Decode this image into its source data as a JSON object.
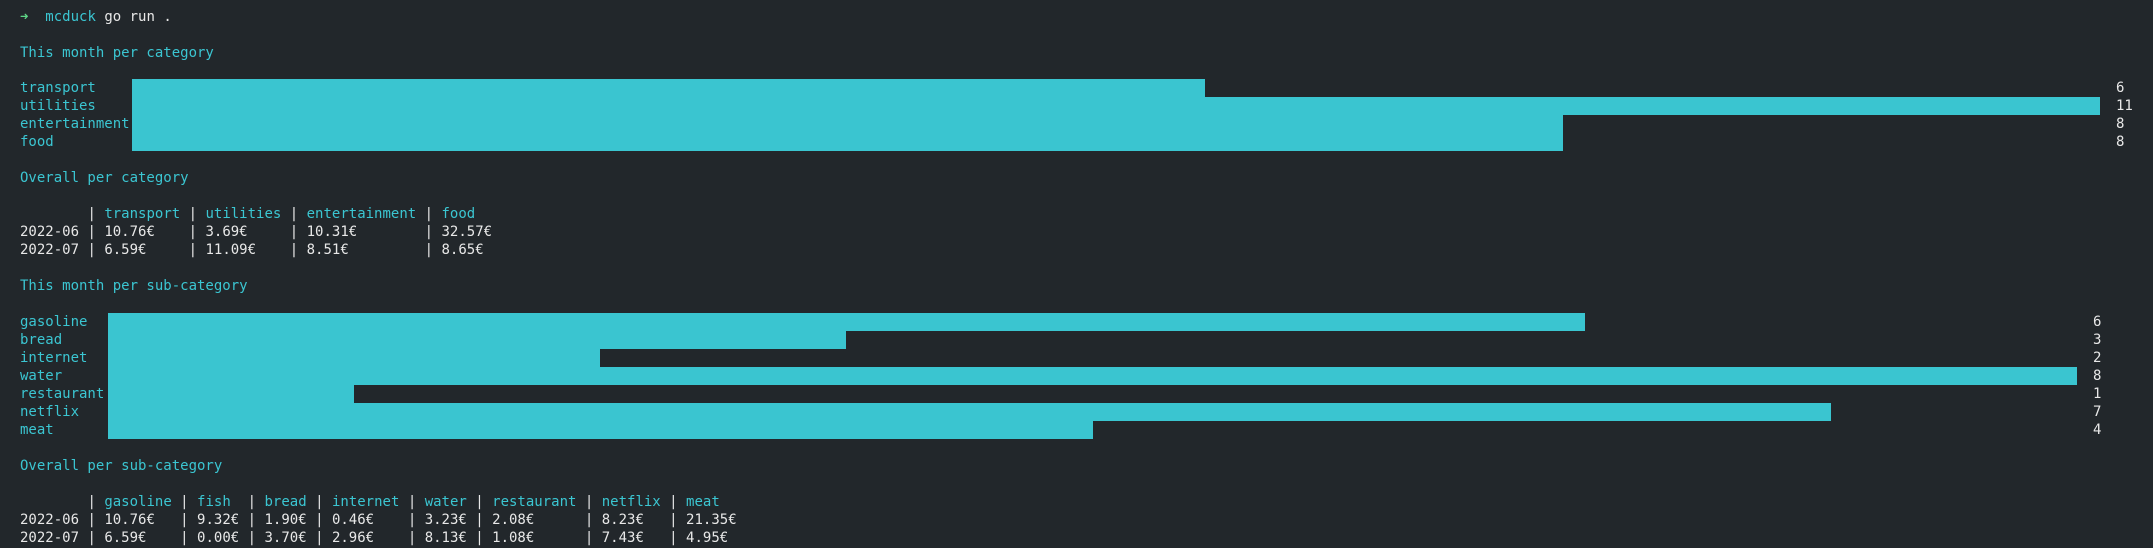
{
  "prompt": {
    "arrow": "➜",
    "directory": "mcduck",
    "command": "go run ."
  },
  "colors": {
    "background": "#22272b",
    "accent": "#3bc6d2",
    "bar": "#3ac5d0",
    "prompt_arrow": "#5fd787"
  },
  "sections": {
    "month_category": {
      "title": "This month per category",
      "scale_max": 11,
      "rows": [
        {
          "label": "transport",
          "value": 6
        },
        {
          "label": "utilities",
          "value": 11
        },
        {
          "label": "entertainment",
          "value": 8
        },
        {
          "label": "food",
          "value": 8
        }
      ]
    },
    "overall_category": {
      "title": "Overall per category",
      "headers": [
        "",
        "transport",
        "utilities",
        "entertainment",
        "food"
      ],
      "rows": [
        [
          "2022-06",
          "10.76€",
          "3.69€",
          "10.31€",
          "32.57€"
        ],
        [
          "2022-07",
          "6.59€",
          "11.09€",
          "8.51€",
          "8.65€"
        ]
      ]
    },
    "month_subcategory": {
      "title": "This month per sub-category",
      "scale_max": 8,
      "rows": [
        {
          "label": "gasoline",
          "value": 6
        },
        {
          "label": "bread",
          "value": 3
        },
        {
          "label": "internet",
          "value": 2
        },
        {
          "label": "water",
          "value": 8
        },
        {
          "label": "restaurant",
          "value": 1
        },
        {
          "label": "netflix",
          "value": 7
        },
        {
          "label": "meat",
          "value": 4
        }
      ]
    },
    "overall_subcategory": {
      "title": "Overall per sub-category",
      "headers": [
        "",
        "gasoline",
        "fish",
        "bread",
        "internet",
        "water",
        "restaurant",
        "netflix",
        "meat"
      ],
      "rows": [
        [
          "2022-06",
          "10.76€",
          "9.32€",
          "1.90€",
          "0.46€",
          "3.23€",
          "2.08€",
          "8.23€",
          "21.35€"
        ],
        [
          "2022-07",
          "6.59€",
          "0.00€",
          "3.70€",
          "2.96€",
          "8.13€",
          "1.08€",
          "7.43€",
          "4.95€"
        ]
      ]
    }
  },
  "chart_data": [
    {
      "type": "bar",
      "title": "This month per category",
      "categories": [
        "transport",
        "utilities",
        "entertainment",
        "food"
      ],
      "values": [
        6,
        11,
        8,
        8
      ],
      "orientation": "horizontal"
    },
    {
      "type": "bar",
      "title": "This month per sub-category",
      "categories": [
        "gasoline",
        "bread",
        "internet",
        "water",
        "restaurant",
        "netflix",
        "meat"
      ],
      "values": [
        6,
        3,
        2,
        8,
        1,
        7,
        4
      ],
      "orientation": "horizontal"
    }
  ]
}
